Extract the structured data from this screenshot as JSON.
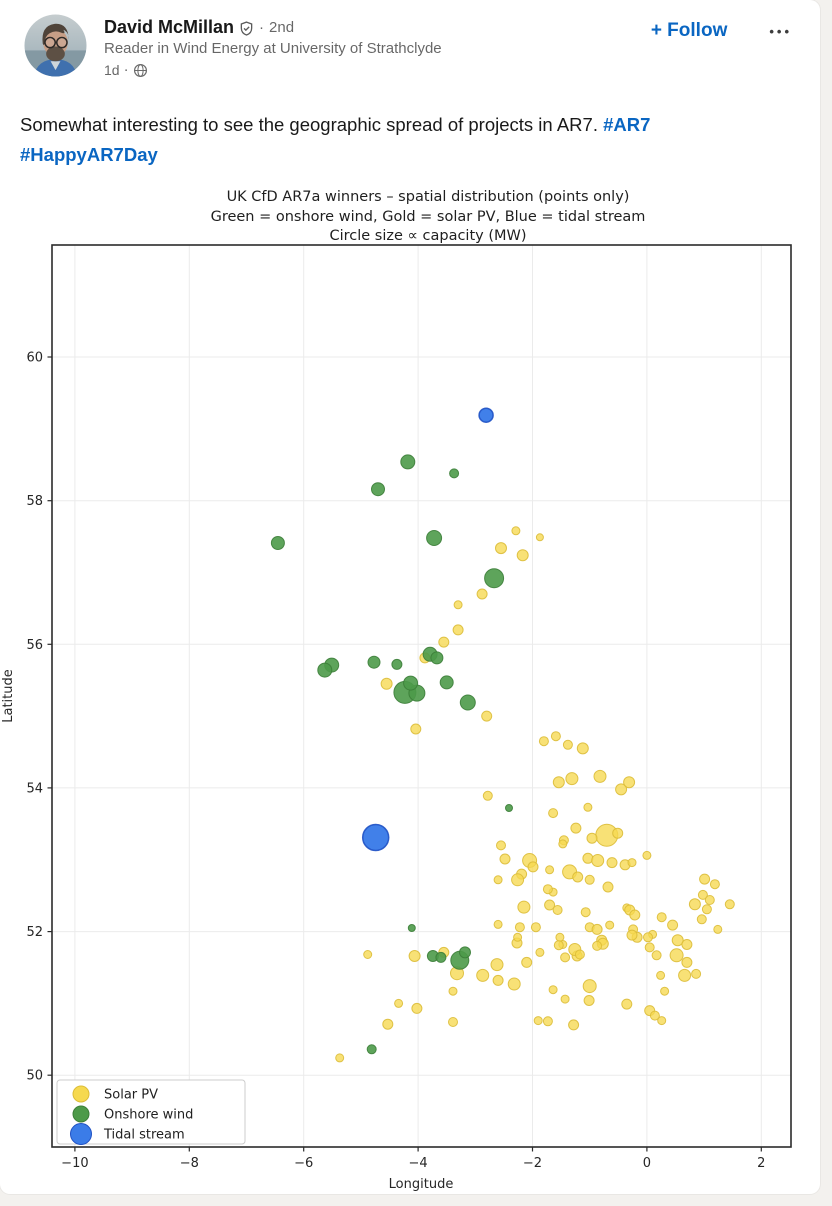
{
  "post": {
    "author": {
      "name": "David McMillan",
      "degree": "2nd",
      "degree_sep": "·",
      "headline": "Reader in Wind Energy at University of Strathclyde",
      "time": "1d",
      "time_sep": "·"
    },
    "follow_label": "+ Follow",
    "overflow_label": "•••",
    "body": {
      "text": "Somewhat interesting to see the geographic spread of projects in AR7.",
      "hashtag1": "#AR7",
      "hashtag2": "#HappyAR7Day"
    }
  },
  "colors": {
    "linkedin_blue": "#0a66c2",
    "solar": "#f6d94f",
    "onshore": "#4d9a49",
    "tidal": "#3b7ce8",
    "page_bg": "#f3f1ee"
  },
  "chart_data": {
    "type": "scatter",
    "title_lines": [
      "UK CfD AR7a winners – spatial distribution (points only)",
      "Green = onshore wind, Gold = solar PV, Blue = tidal stream",
      "Circle size ∝ capacity (MW)"
    ],
    "xlabel": "Longitude",
    "ylabel": "Latitude",
    "xlim": [
      -10.4,
      2.52
    ],
    "ylim": [
      49.0,
      61.56
    ],
    "xticks": [
      -10,
      -8,
      -6,
      -4,
      -2,
      0,
      2
    ],
    "yticks": [
      50,
      52,
      54,
      56,
      58,
      60
    ],
    "grid": true,
    "grid_color": "#ebebeb",
    "frame_color": "#2b2b2b",
    "legend": {
      "position": "lower left",
      "items": [
        {
          "label": "Solar PV",
          "color": "#f6d94f",
          "edge": "#dcbd38",
          "r": 8
        },
        {
          "label": "Onshore wind",
          "color": "#4d9a49",
          "edge": "#3c7e38",
          "r": 8
        },
        {
          "label": "Tidal stream",
          "color": "#3b7ce8",
          "edge": "#1f51c4",
          "r": 10.5
        }
      ]
    },
    "series": [
      {
        "name": "Solar PV",
        "color": "#f6d94f",
        "edge": "#dcbd38",
        "opacity": 0.78,
        "stroke_width": 1,
        "points": [
          [
            -2.29,
            57.58,
            4
          ],
          [
            -1.87,
            57.49,
            3.5
          ],
          [
            -2.55,
            57.34,
            5.5
          ],
          [
            -2.17,
            57.24,
            5.5
          ],
          [
            -2.88,
            56.7,
            5
          ],
          [
            -3.3,
            56.55,
            4
          ],
          [
            -3.3,
            56.2,
            5
          ],
          [
            -3.55,
            56.03,
            5
          ],
          [
            -3.88,
            55.81,
            5
          ],
          [
            -4.55,
            55.45,
            5.5
          ],
          [
            -2.8,
            55.0,
            5
          ],
          [
            -4.04,
            54.82,
            5
          ],
          [
            -1.8,
            54.65,
            4.5
          ],
          [
            -1.59,
            54.72,
            4.5
          ],
          [
            -1.38,
            54.6,
            4.5
          ],
          [
            -1.12,
            54.55,
            5.5
          ],
          [
            -1.54,
            54.08,
            5.5
          ],
          [
            -1.31,
            54.13,
            6
          ],
          [
            -0.82,
            54.16,
            6
          ],
          [
            -0.45,
            53.98,
            5.5
          ],
          [
            -0.31,
            54.08,
            5.5
          ],
          [
            -2.78,
            53.89,
            4.5
          ],
          [
            -1.64,
            53.65,
            4.5
          ],
          [
            -1.03,
            53.73,
            4
          ],
          [
            -1.24,
            53.44,
            5
          ],
          [
            -0.7,
            53.34,
            11
          ],
          [
            -0.51,
            53.37,
            5
          ],
          [
            -0.96,
            53.3,
            5
          ],
          [
            -1.45,
            53.27,
            4.5
          ],
          [
            -1.47,
            53.22,
            4
          ],
          [
            -2.55,
            53.2,
            4.5
          ],
          [
            -2.48,
            53.01,
            5
          ],
          [
            -2.05,
            52.99,
            7
          ],
          [
            -1.99,
            52.9,
            5
          ],
          [
            -1.7,
            52.86,
            4
          ],
          [
            -2.19,
            52.8,
            5
          ],
          [
            -2.26,
            52.72,
            6
          ],
          [
            -2.6,
            52.72,
            4
          ],
          [
            -1.35,
            52.83,
            7
          ],
          [
            -1.21,
            52.76,
            5
          ],
          [
            -1.03,
            53.02,
            5
          ],
          [
            -0.86,
            52.99,
            6
          ],
          [
            -0.61,
            52.96,
            5
          ],
          [
            -0.38,
            52.93,
            5
          ],
          [
            -0.26,
            52.96,
            4
          ],
          [
            0.0,
            53.06,
            4
          ],
          [
            -1.64,
            52.55,
            4
          ],
          [
            -1.73,
            52.59,
            4.5
          ],
          [
            -1.0,
            52.72,
            4.5
          ],
          [
            -1.7,
            52.37,
            5
          ],
          [
            -1.56,
            52.3,
            4.5
          ],
          [
            -2.15,
            52.34,
            6
          ],
          [
            -2.6,
            52.1,
            4
          ],
          [
            -2.22,
            52.06,
            4.5
          ],
          [
            -1.94,
            52.06,
            4.5
          ],
          [
            -1.07,
            52.27,
            4.5
          ],
          [
            -1.0,
            52.06,
            4.5
          ],
          [
            -0.68,
            52.62,
            5
          ],
          [
            -0.35,
            52.33,
            4
          ],
          [
            -0.3,
            52.3,
            5
          ],
          [
            -0.21,
            52.23,
            5
          ],
          [
            0.26,
            52.2,
            4.5
          ],
          [
            0.45,
            52.09,
            5
          ],
          [
            -0.87,
            52.03,
            5
          ],
          [
            -0.65,
            52.09,
            4
          ],
          [
            -0.24,
            52.03,
            4.5
          ],
          [
            -0.17,
            51.92,
            5
          ],
          [
            -0.79,
            51.88,
            5
          ],
          [
            0.1,
            51.96,
            4
          ],
          [
            0.02,
            51.92,
            4.5
          ],
          [
            -0.26,
            51.95,
            5
          ],
          [
            0.54,
            51.88,
            5.5
          ],
          [
            0.7,
            51.82,
            5
          ],
          [
            0.05,
            51.78,
            4.5
          ],
          [
            0.17,
            51.67,
            4.5
          ],
          [
            0.52,
            51.67,
            6.5
          ],
          [
            0.7,
            51.57,
            5
          ],
          [
            -0.77,
            51.83,
            5.5
          ],
          [
            -0.87,
            51.8,
            4.5
          ],
          [
            -1.22,
            51.66,
            5
          ],
          [
            -1.26,
            51.75,
            6
          ],
          [
            -1.17,
            51.68,
            4.5
          ],
          [
            -1.47,
            51.82,
            4
          ],
          [
            -1.43,
            51.64,
            4.5
          ],
          [
            -1.52,
            51.92,
            4
          ],
          [
            -2.27,
            51.84,
            5
          ],
          [
            -2.26,
            51.92,
            4
          ],
          [
            -2.1,
            51.57,
            5
          ],
          [
            -1.87,
            51.71,
            4
          ],
          [
            -1.54,
            51.81,
            4.5
          ],
          [
            -2.62,
            51.54,
            6
          ],
          [
            -2.87,
            51.39,
            6
          ],
          [
            -2.6,
            51.32,
            5
          ],
          [
            -2.32,
            51.27,
            6
          ],
          [
            -3.32,
            51.42,
            6.5
          ],
          [
            -3.55,
            51.71,
            5
          ],
          [
            -4.06,
            51.66,
            5.5
          ],
          [
            -4.88,
            51.68,
            4
          ],
          [
            -3.39,
            51.17,
            4
          ],
          [
            -1.64,
            51.19,
            4
          ],
          [
            -1.0,
            51.24,
            6.5
          ],
          [
            -1.01,
            51.04,
            5
          ],
          [
            -1.43,
            51.06,
            4
          ],
          [
            -0.35,
            50.99,
            5
          ],
          [
            0.05,
            50.9,
            5
          ],
          [
            0.14,
            50.83,
            4.5
          ],
          [
            0.26,
            50.76,
            4
          ],
          [
            -1.28,
            50.7,
            5
          ],
          [
            -1.73,
            50.75,
            4.5
          ],
          [
            -1.9,
            50.76,
            4
          ],
          [
            -4.34,
            51.0,
            4
          ],
          [
            -4.02,
            50.93,
            5
          ],
          [
            -4.53,
            50.71,
            5
          ],
          [
            -3.39,
            50.74,
            4.5
          ],
          [
            -5.37,
            50.24,
            4
          ],
          [
            0.24,
            51.39,
            4
          ],
          [
            0.66,
            51.39,
            6
          ],
          [
            0.86,
            51.41,
            4.5
          ],
          [
            0.31,
            51.17,
            4
          ],
          [
            1.01,
            52.73,
            5
          ],
          [
            1.19,
            52.66,
            4.5
          ],
          [
            0.98,
            52.51,
            4.5
          ],
          [
            1.1,
            52.44,
            4.5
          ],
          [
            0.84,
            52.38,
            5.5
          ],
          [
            1.05,
            52.31,
            4.5
          ],
          [
            1.45,
            52.38,
            4.5
          ],
          [
            0.96,
            52.17,
            4.5
          ],
          [
            1.24,
            52.03,
            4
          ]
        ]
      },
      {
        "name": "Onshore wind",
        "color": "#4d9a49",
        "edge": "#3c7e38",
        "opacity": 0.9,
        "stroke_width": 1,
        "points": [
          [
            -4.18,
            58.54,
            7
          ],
          [
            -3.37,
            58.38,
            4.5
          ],
          [
            -4.7,
            58.16,
            6.5
          ],
          [
            -6.45,
            57.41,
            6.5
          ],
          [
            -3.72,
            57.48,
            7.5
          ],
          [
            -2.67,
            56.92,
            9.5
          ],
          [
            -3.79,
            55.86,
            7
          ],
          [
            -3.67,
            55.81,
            6
          ],
          [
            -4.77,
            55.75,
            6
          ],
          [
            -4.37,
            55.72,
            5
          ],
          [
            -5.51,
            55.71,
            7
          ],
          [
            -5.63,
            55.64,
            7
          ],
          [
            -3.5,
            55.47,
            6.5
          ],
          [
            -4.23,
            55.33,
            11
          ],
          [
            -4.02,
            55.32,
            8
          ],
          [
            -4.13,
            55.46,
            7
          ],
          [
            -3.13,
            55.19,
            7.5
          ],
          [
            -2.41,
            53.72,
            3.5
          ],
          [
            -4.11,
            52.05,
            3.5
          ],
          [
            -3.74,
            51.66,
            5.5
          ],
          [
            -3.6,
            51.64,
            5
          ],
          [
            -3.27,
            51.6,
            9
          ],
          [
            -3.18,
            51.71,
            5.5
          ],
          [
            -4.81,
            50.36,
            4.5
          ]
        ]
      },
      {
        "name": "Tidal stream",
        "color": "#3b7ce8",
        "edge": "#1f51c4",
        "opacity": 0.97,
        "stroke_width": 1.5,
        "points": [
          [
            -2.81,
            59.19,
            7
          ],
          [
            -4.74,
            53.31,
            13
          ]
        ]
      }
    ]
  }
}
